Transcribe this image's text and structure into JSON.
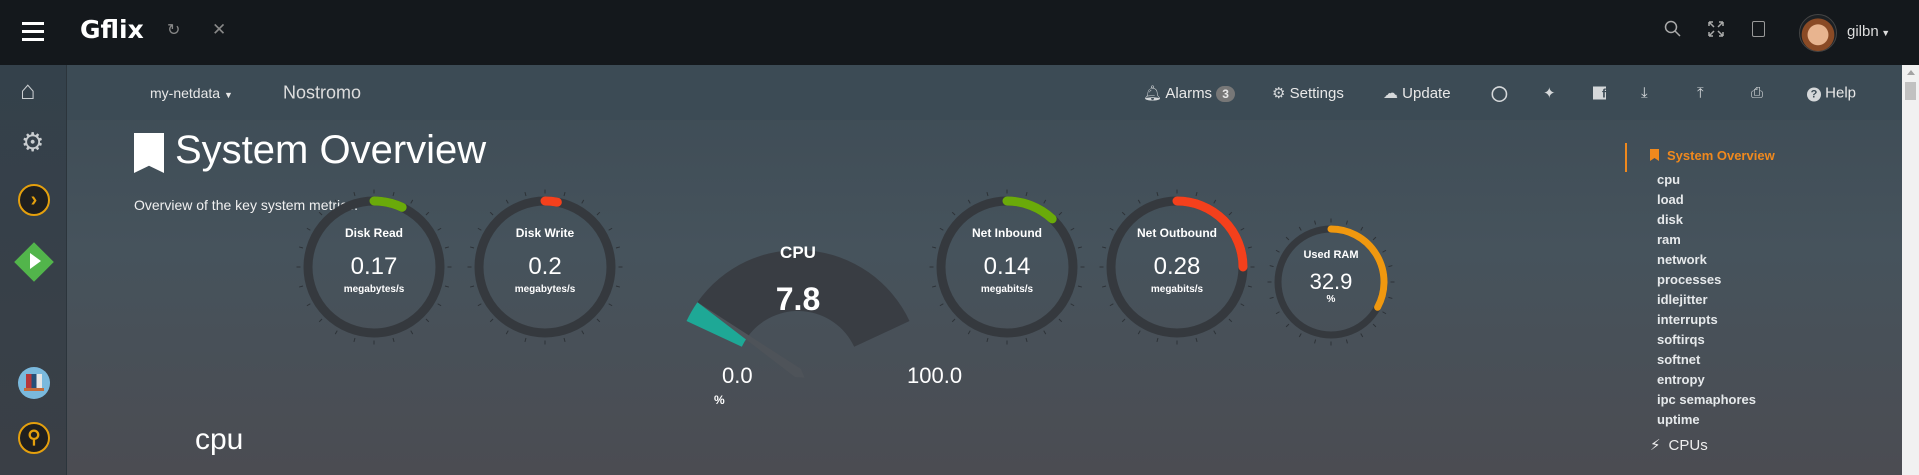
{
  "topbar": {
    "brand": "Gflix",
    "user": "gilbn",
    "icons": [
      "menu-icon",
      "refresh-icon",
      "close-icon",
      "search-icon",
      "fullscreen-icon",
      "translate-icon",
      "avatar"
    ]
  },
  "sidebar": {
    "items": [
      "home-icon",
      "settings-gear-icon",
      "plex-icon",
      "emby-icon",
      "ubooquity-icon",
      "soundcloud-icon",
      "ombi-search-icon"
    ]
  },
  "header": {
    "host_menu": "my-netdata",
    "hostname": "Nostromo",
    "alarms_label": "Alarms",
    "alarms_count": "3",
    "settings_label": "Settings",
    "update_label": "Update",
    "help_label": "Help"
  },
  "page": {
    "title": "System Overview",
    "subtitle": "Overview of the key system metrics.",
    "section": "cpu"
  },
  "gauges": [
    {
      "title": "Disk Read",
      "value": "0.17",
      "unit": "megabytes/s",
      "fill": 0.07,
      "color": "#6aaa0a"
    },
    {
      "title": "Disk Write",
      "value": "0.2",
      "unit": "megabytes/s",
      "fill": 0.03,
      "color": "#f4401c"
    },
    {
      "title": "Net Inbound",
      "value": "0.14",
      "unit": "megabits/s",
      "fill": 0.12,
      "color": "#6aaa0a"
    },
    {
      "title": "Net Outbound",
      "value": "0.28",
      "unit": "megabits/s",
      "fill": 0.25,
      "color": "#f4401c"
    },
    {
      "title": "Used RAM",
      "value": "32.9",
      "unit": "%",
      "fill": 0.329,
      "color": "#f0980f"
    }
  ],
  "cpu_gauge": {
    "title": "CPU",
    "value": "7.8",
    "min": "0.0",
    "max": "100.0",
    "unit": "%",
    "percent": 7.8,
    "color": "#1ea896"
  },
  "toc": {
    "active": "System Overview",
    "items": [
      "cpu",
      "load",
      "disk",
      "ram",
      "network",
      "processes",
      "idlejitter",
      "interrupts",
      "softirqs",
      "softnet",
      "entropy",
      "ipc semaphores",
      "uptime"
    ],
    "next_section": "CPUs"
  },
  "colors": {
    "accent": "#f0891d",
    "topbar": "#14181c",
    "ring": "#35393e"
  }
}
